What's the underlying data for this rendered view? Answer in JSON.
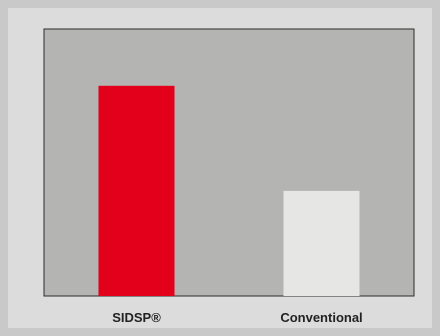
{
  "chart_data": {
    "type": "bar",
    "categories": [
      "SIDSP®",
      "Conventional"
    ],
    "values": [
      100,
      50
    ],
    "title": "",
    "xlabel": "",
    "ylabel": "",
    "ylim": [
      0,
      127
    ],
    "grid": false,
    "legend": "none"
  },
  "colors": {
    "page_background": "#c9c9c9",
    "frame_background": "#dcdcdc",
    "plot_background": "#b4b4b2",
    "axis": "#2b2b2b",
    "bars": [
      "#e3001b",
      "#e6e6e4"
    ]
  }
}
